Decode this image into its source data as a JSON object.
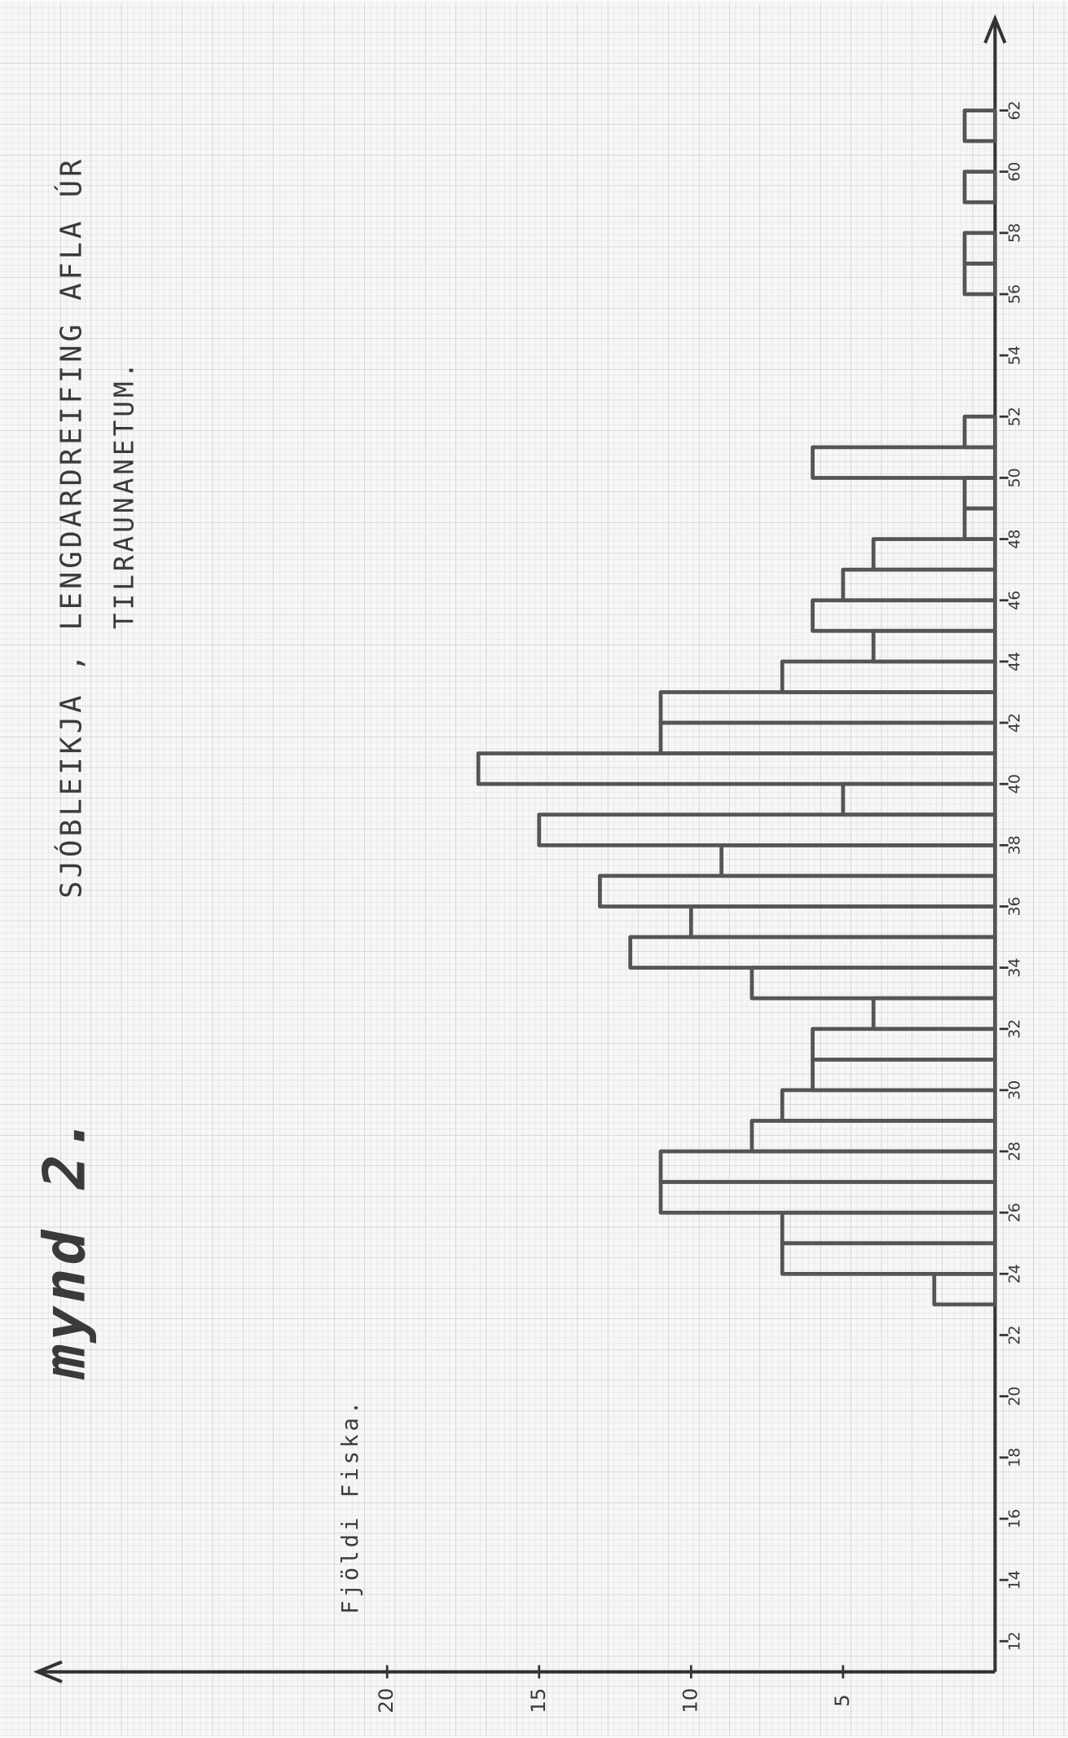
{
  "chart_data": {
    "type": "histogram",
    "title": "mynd 2.",
    "subtitle": [
      "SJÓBLEIKJA , LENGDARDREIFING AFLA ÚR",
      "TILRAUNANETUM."
    ],
    "y_label": "Fjöldi Fiska.",
    "bins": [
      23,
      24,
      25,
      26,
      27,
      28,
      29,
      30,
      31,
      32,
      33,
      34,
      35,
      36,
      37,
      38,
      39,
      40,
      41,
      42,
      43,
      44,
      45,
      46,
      47,
      48,
      49,
      50,
      51,
      52,
      53,
      54,
      55,
      56,
      57,
      58,
      59,
      60,
      61,
      62
    ],
    "values": [
      2,
      7,
      7,
      11,
      11,
      8,
      7,
      6,
      6,
      4,
      8,
      12,
      10,
      13,
      9,
      15,
      5,
      17,
      11,
      11,
      7,
      4,
      6,
      5,
      4,
      1,
      1,
      6,
      1,
      0,
      0,
      0,
      0,
      1,
      1,
      0,
      1,
      0,
      1
    ],
    "color": "#555555",
    "xlim": [
      11,
      65
    ],
    "xticks": [
      12,
      14,
      16,
      18,
      20,
      22,
      24,
      26,
      28,
      30,
      32,
      34,
      36,
      38,
      40,
      42,
      44,
      46,
      48,
      50,
      52,
      54,
      56,
      58,
      60,
      62
    ],
    "ylim": [
      0,
      31.5
    ],
    "yticks": [
      5,
      10,
      15,
      20
    ],
    "grid": true
  }
}
